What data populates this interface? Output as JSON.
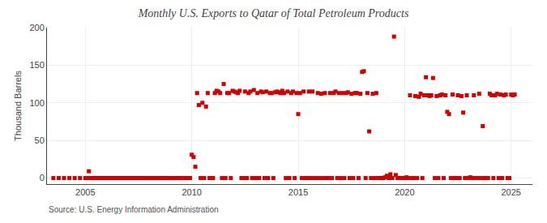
{
  "chart_data": {
    "type": "scatter",
    "title": "Monthly U.S. Exports to Qatar of Total Petroleum Products",
    "ylabel": "Thousand Barrels",
    "annotations": [
      "Source: U.S. Energy Information Administration"
    ],
    "color": "#cc0000",
    "marker": "square",
    "grid": true,
    "xlim": [
      2003.2,
      2026.0
    ],
    "xticks": [
      2005,
      2010,
      2015,
      2020,
      2025
    ],
    "ylim": [
      -8,
      200
    ],
    "yticks": [
      0,
      50,
      100,
      150,
      200
    ],
    "x": [
      2003.5,
      2003.75,
      2004.0,
      2004.25,
      2004.5,
      2004.75,
      2005.0,
      2005.083,
      2005.167,
      2005.25,
      2005.333,
      2005.417,
      2005.5,
      2005.583,
      2005.667,
      2005.75,
      2005.833,
      2005.917,
      2006.0,
      2006.083,
      2006.167,
      2006.25,
      2006.333,
      2006.417,
      2006.5,
      2006.583,
      2006.667,
      2006.75,
      2006.833,
      2006.917,
      2007.0,
      2007.083,
      2007.167,
      2007.25,
      2007.333,
      2007.417,
      2007.5,
      2007.583,
      2007.667,
      2007.75,
      2007.833,
      2007.917,
      2008.0,
      2008.083,
      2008.167,
      2008.25,
      2008.333,
      2008.417,
      2008.5,
      2008.583,
      2008.667,
      2008.75,
      2008.833,
      2008.917,
      2009.0,
      2009.083,
      2009.167,
      2009.25,
      2009.333,
      2009.417,
      2009.5,
      2009.583,
      2009.667,
      2009.75,
      2009.833,
      2009.917,
      2010.0,
      2010.083,
      2010.167,
      2010.25,
      2010.333,
      2010.417,
      2010.5,
      2010.583,
      2010.667,
      2010.75,
      2010.833,
      2010.917,
      2011.0,
      2011.083,
      2011.167,
      2011.25,
      2011.333,
      2011.417,
      2011.5,
      2011.583,
      2011.667,
      2011.75,
      2011.833,
      2011.917,
      2012.0,
      2012.083,
      2012.167,
      2012.25,
      2012.333,
      2012.417,
      2012.5,
      2012.583,
      2012.667,
      2012.75,
      2012.833,
      2012.917,
      2013.0,
      2013.083,
      2013.167,
      2013.25,
      2013.333,
      2013.417,
      2013.5,
      2013.583,
      2013.667,
      2013.75,
      2013.833,
      2013.917,
      2014.0,
      2014.083,
      2014.167,
      2014.25,
      2014.333,
      2014.417,
      2014.5,
      2014.583,
      2014.667,
      2014.75,
      2014.833,
      2014.917,
      2015.0,
      2015.083,
      2015.167,
      2015.25,
      2015.333,
      2015.417,
      2015.5,
      2015.583,
      2015.667,
      2015.75,
      2015.833,
      2015.917,
      2016.0,
      2016.083,
      2016.167,
      2016.25,
      2016.333,
      2016.417,
      2016.5,
      2016.583,
      2016.667,
      2016.75,
      2016.833,
      2016.917,
      2017.0,
      2017.083,
      2017.167,
      2017.25,
      2017.333,
      2017.417,
      2017.5,
      2017.583,
      2017.667,
      2017.75,
      2017.833,
      2017.917,
      2018.0,
      2018.083,
      2018.167,
      2018.25,
      2018.333,
      2018.417,
      2018.5,
      2018.583,
      2018.667,
      2018.75,
      2018.833,
      2018.917,
      2019.0,
      2019.083,
      2019.167,
      2019.25,
      2019.333,
      2019.417,
      2019.5,
      2019.583,
      2019.667,
      2019.75,
      2019.833,
      2019.917,
      2020.0,
      2020.083,
      2020.167,
      2020.25,
      2020.333,
      2020.417,
      2020.5,
      2020.583,
      2020.667,
      2020.75,
      2020.833,
      2020.917,
      2021.0,
      2021.083,
      2021.167,
      2021.25,
      2021.333,
      2021.417,
      2021.5,
      2021.583,
      2021.667,
      2021.75,
      2021.833,
      2021.917,
      2022.0,
      2022.083,
      2022.167,
      2022.25,
      2022.333,
      2022.417,
      2022.5,
      2022.583,
      2022.667,
      2022.75,
      2022.833,
      2022.917,
      2023.0,
      2023.083,
      2023.167,
      2023.25,
      2023.333,
      2023.417,
      2023.5,
      2023.583,
      2023.667,
      2023.75,
      2023.833,
      2023.917,
      2024.0,
      2024.083,
      2024.167,
      2024.25,
      2024.333,
      2024.417,
      2024.5,
      2024.583,
      2024.667,
      2024.75,
      2024.833,
      2024.917,
      2025.0,
      2025.083,
      2025.167
    ],
    "values": [
      0,
      0,
      0,
      0,
      0,
      0,
      0,
      0,
      9,
      0,
      0,
      0,
      0,
      0,
      0,
      0,
      0,
      0,
      0,
      0,
      0,
      0,
      0,
      0,
      0,
      0,
      0,
      0,
      0,
      0,
      0,
      0,
      0,
      0,
      0,
      0,
      0,
      0,
      0,
      0,
      0,
      0,
      0,
      0,
      0,
      0,
      0,
      0,
      0,
      0,
      0,
      0,
      0,
      0,
      0,
      0,
      0,
      0,
      0,
      0,
      0,
      0,
      0,
      0,
      0,
      0,
      31,
      28,
      15,
      113,
      97,
      0,
      100,
      0,
      95,
      113,
      0,
      0,
      0,
      113,
      116,
      115,
      113,
      0,
      125,
      0,
      113,
      113,
      0,
      116,
      115,
      114,
      113,
      116,
      0,
      0,
      115,
      0,
      113,
      115,
      0,
      117,
      0,
      113,
      0,
      115,
      114,
      0,
      115,
      0,
      113,
      113,
      0,
      114,
      115,
      114,
      113,
      116,
      113,
      0,
      115,
      0,
      113,
      115,
      0,
      113,
      85,
      113,
      0,
      115,
      0,
      0,
      115,
      0,
      115,
      0,
      0,
      113,
      0,
      112,
      0,
      113,
      0,
      0,
      113,
      0,
      113,
      115,
      0,
      113,
      0,
      113,
      0,
      113,
      114,
      0,
      112,
      0,
      113,
      113,
      0,
      112,
      141,
      142,
      0,
      113,
      62,
      0,
      112,
      0,
      113,
      0,
      0,
      0,
      0,
      1,
      3,
      0,
      5,
      0,
      188,
      4,
      0,
      0,
      0,
      0,
      0,
      1,
      0,
      110,
      0,
      0,
      109,
      0,
      108,
      112,
      0,
      110,
      134,
      110,
      109,
      110,
      133,
      0,
      109,
      0,
      110,
      111,
      0,
      110,
      88,
      85,
      0,
      111,
      0,
      0,
      110,
      0,
      109,
      87,
      0,
      110,
      0,
      1,
      0,
      110,
      0,
      0,
      112,
      0,
      69,
      0,
      0,
      0,
      112,
      110,
      0,
      110,
      112,
      0,
      111,
      0,
      110,
      111,
      0,
      0,
      111,
      110,
      111
    ]
  }
}
